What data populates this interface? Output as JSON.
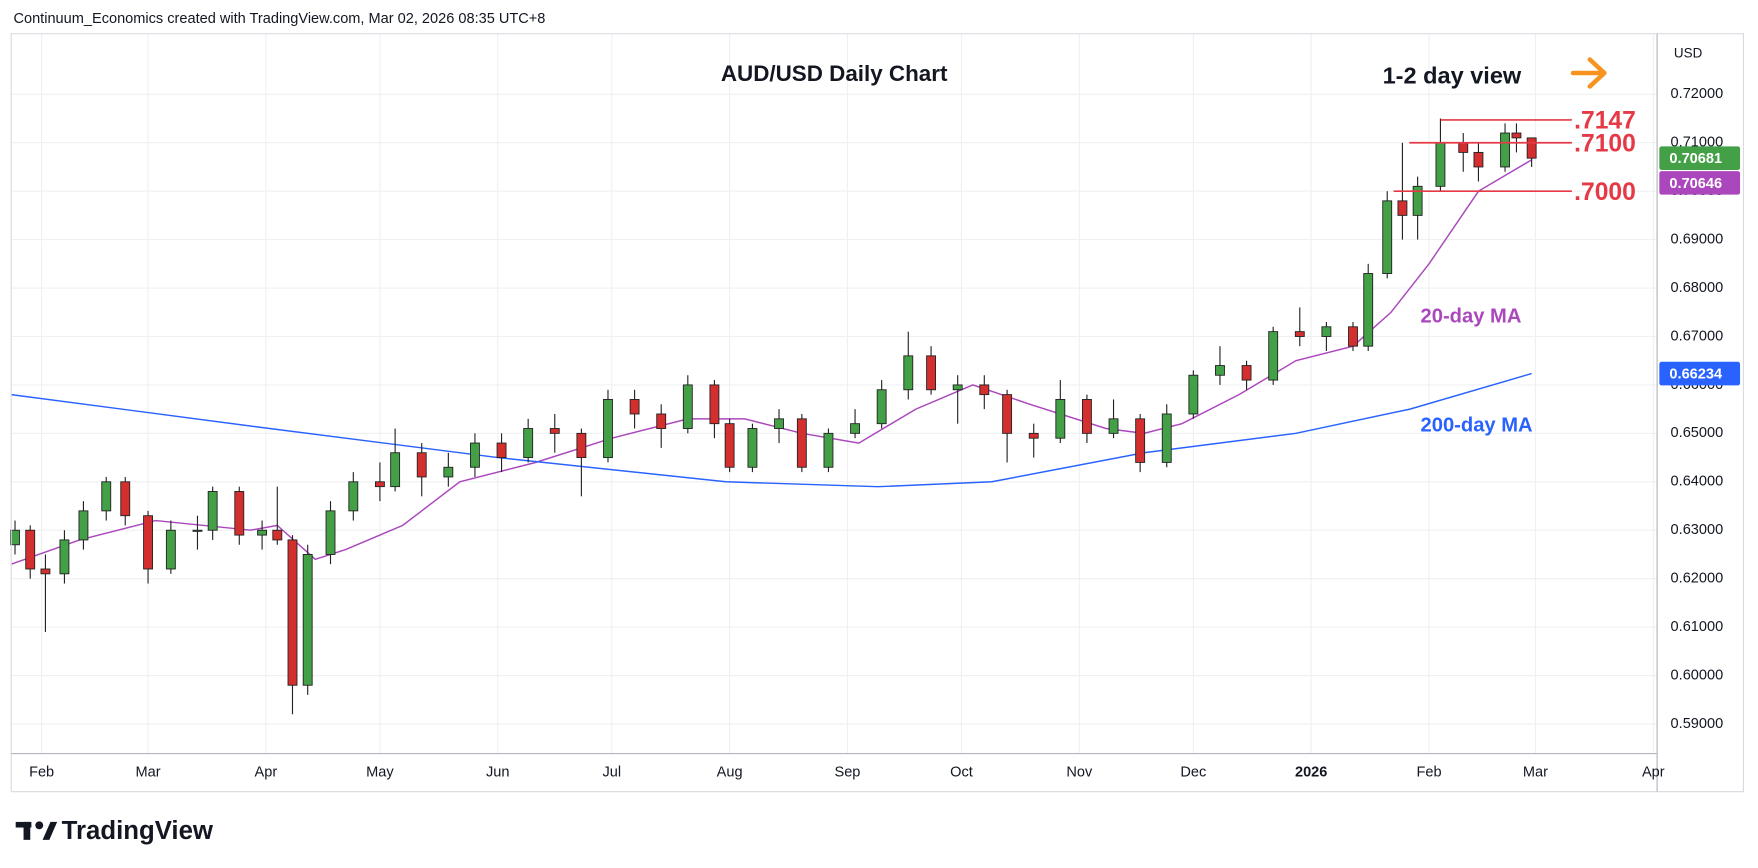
{
  "header": {
    "attribution": "Continuum_Economics created with TradingView.com, Mar 02, 2026 08:35 UTC+8"
  },
  "chart_data": {
    "type": "candlestick",
    "title": "AUD/USD Daily Chart",
    "annotation": "1-2 day view",
    "currency": "USD",
    "x": [
      -7,
      -3,
      1,
      6,
      11,
      17,
      22,
      28,
      34,
      41,
      45,
      52,
      58,
      62,
      66,
      70,
      76,
      82,
      89,
      93,
      100,
      107,
      114,
      121,
      128,
      135,
      142,
      149,
      156,
      163,
      170,
      177,
      181,
      187,
      194,
      200,
      207,
      214,
      221,
      228,
      234,
      241,
      248,
      254,
      261,
      268,
      275,
      282,
      289,
      296,
      303,
      310,
      317,
      324,
      331,
      338,
      345,
      349,
      354,
      358,
      362,
      368,
      374,
      378,
      385,
      388,
      392
    ],
    "open": [
      0.627,
      0.63,
      0.622,
      0.621,
      0.628,
      0.634,
      0.64,
      0.633,
      0.622,
      0.63,
      0.63,
      0.638,
      0.629,
      0.63,
      0.628,
      0.598,
      0.625,
      0.634,
      0.64,
      0.639,
      0.646,
      0.641,
      0.643,
      0.648,
      0.645,
      0.651,
      0.65,
      0.645,
      0.657,
      0.654,
      0.651,
      0.66,
      0.652,
      0.643,
      0.651,
      0.653,
      0.643,
      0.65,
      0.652,
      0.659,
      0.666,
      0.659,
      0.66,
      0.658,
      0.65,
      0.649,
      0.657,
      0.65,
      0.653,
      0.644,
      0.654,
      0.662,
      0.664,
      0.661,
      0.671,
      0.67,
      0.672,
      0.668,
      0.683,
      0.698,
      0.695,
      0.701,
      0.71,
      0.708,
      0.705,
      0.712,
      0.711
    ],
    "high": [
      0.632,
      0.631,
      0.625,
      0.63,
      0.636,
      0.641,
      0.641,
      0.634,
      0.632,
      0.633,
      0.639,
      0.639,
      0.632,
      0.639,
      0.629,
      0.627,
      0.636,
      0.642,
      0.644,
      0.651,
      0.648,
      0.646,
      0.65,
      0.65,
      0.653,
      0.654,
      0.651,
      0.659,
      0.659,
      0.656,
      0.662,
      0.661,
      0.653,
      0.652,
      0.655,
      0.654,
      0.651,
      0.655,
      0.661,
      0.671,
      0.668,
      0.662,
      0.662,
      0.659,
      0.652,
      0.661,
      0.658,
      0.657,
      0.654,
      0.656,
      0.663,
      0.668,
      0.665,
      0.672,
      0.676,
      0.673,
      0.673,
      0.685,
      0.7,
      0.71,
      0.703,
      0.715,
      0.712,
      0.71,
      0.714,
      0.714,
      0.711
    ],
    "low": [
      0.625,
      0.62,
      0.609,
      0.619,
      0.626,
      0.632,
      0.631,
      0.619,
      0.621,
      0.626,
      0.628,
      0.627,
      0.626,
      0.627,
      0.592,
      0.596,
      0.623,
      0.632,
      0.636,
      0.638,
      0.637,
      0.639,
      0.641,
      0.642,
      0.644,
      0.646,
      0.637,
      0.644,
      0.651,
      0.647,
      0.65,
      0.649,
      0.642,
      0.642,
      0.648,
      0.642,
      0.642,
      0.649,
      0.651,
      0.657,
      0.658,
      0.652,
      0.655,
      0.644,
      0.645,
      0.648,
      0.648,
      0.649,
      0.642,
      0.643,
      0.653,
      0.66,
      0.659,
      0.66,
      0.668,
      0.667,
      0.667,
      0.667,
      0.682,
      0.69,
      0.69,
      0.7,
      0.704,
      0.702,
      0.704,
      0.708,
      0.705
    ],
    "close": [
      0.63,
      0.622,
      0.621,
      0.628,
      0.634,
      0.64,
      0.633,
      0.622,
      0.63,
      0.63,
      0.638,
      0.629,
      0.63,
      0.628,
      0.598,
      0.625,
      0.634,
      0.64,
      0.639,
      0.646,
      0.641,
      0.643,
      0.648,
      0.645,
      0.651,
      0.65,
      0.645,
      0.657,
      0.654,
      0.651,
      0.66,
      0.652,
      0.643,
      0.651,
      0.653,
      0.643,
      0.65,
      0.652,
      0.659,
      0.666,
      0.659,
      0.66,
      0.658,
      0.65,
      0.649,
      0.657,
      0.65,
      0.653,
      0.644,
      0.654,
      0.662,
      0.664,
      0.661,
      0.671,
      0.67,
      0.672,
      0.668,
      0.683,
      0.698,
      0.695,
      0.701,
      0.71,
      0.708,
      0.705,
      0.712,
      0.711,
      0.70681
    ],
    "last_value_label": "0.70681",
    "last_color": "#43a047",
    "up_color": "#43a047",
    "down_color": "#d32f2f",
    "series": [
      {
        "name": "20-day MA",
        "color": "#ab47bc",
        "x": [
          -8,
          10,
          30,
          55,
          62,
          72,
          80,
          95,
          110,
          130,
          150,
          170,
          185,
          200,
          215,
          230,
          245,
          260,
          280,
          290,
          300,
          315,
          330,
          345,
          355,
          365,
          378,
          392
        ],
        "values": [
          0.623,
          0.628,
          0.632,
          0.63,
          0.631,
          0.624,
          0.626,
          0.631,
          0.64,
          0.644,
          0.649,
          0.653,
          0.653,
          0.65,
          0.648,
          0.655,
          0.66,
          0.656,
          0.651,
          0.65,
          0.652,
          0.658,
          0.665,
          0.668,
          0.675,
          0.685,
          0.7,
          0.70646
        ],
        "last_value_label": "0.70646"
      },
      {
        "name": "200-day MA",
        "color": "#2962ff",
        "x": [
          -8,
          60,
          120,
          180,
          220,
          250,
          290,
          330,
          360,
          392
        ],
        "values": [
          0.658,
          0.651,
          0.645,
          0.64,
          0.639,
          0.64,
          0.646,
          0.65,
          0.655,
          0.66234
        ],
        "last_value_label": "0.66234"
      }
    ],
    "levels": [
      {
        "value": 0.7147,
        "label": ".7147"
      },
      {
        "value": 0.71,
        "label": ".7100"
      },
      {
        "value": 0.7,
        "label": ".7000"
      }
    ],
    "level_color": "#e53946",
    "xlim": [
      -8,
      425
    ],
    "xticks": [
      {
        "value": 0,
        "label": "Feb"
      },
      {
        "value": 28,
        "label": "Mar"
      },
      {
        "value": 59,
        "label": "Apr"
      },
      {
        "value": 89,
        "label": "May"
      },
      {
        "value": 120,
        "label": "Jun"
      },
      {
        "value": 150,
        "label": "Jul"
      },
      {
        "value": 181,
        "label": "Aug"
      },
      {
        "value": 212,
        "label": "Sep"
      },
      {
        "value": 242,
        "label": "Oct"
      },
      {
        "value": 273,
        "label": "Nov"
      },
      {
        "value": 303,
        "label": "Dec"
      },
      {
        "value": 334,
        "label": "2026"
      },
      {
        "value": 365,
        "label": "Feb"
      },
      {
        "value": 393,
        "label": "Mar"
      },
      {
        "value": 424,
        "label": "Apr"
      }
    ],
    "ylim": [
      0.5839,
      0.7325
    ],
    "yticks": [
      {
        "value": 0.59,
        "label": "0.59000"
      },
      {
        "value": 0.6,
        "label": "0.60000"
      },
      {
        "value": 0.61,
        "label": "0.61000"
      },
      {
        "value": 0.62,
        "label": "0.62000"
      },
      {
        "value": 0.63,
        "label": "0.63000"
      },
      {
        "value": 0.64,
        "label": "0.64000"
      },
      {
        "value": 0.65,
        "label": "0.65000"
      },
      {
        "value": 0.66,
        "label": "0.66000"
      },
      {
        "value": 0.67,
        "label": "0.67000"
      },
      {
        "value": 0.68,
        "label": "0.68000"
      },
      {
        "value": 0.69,
        "label": "0.69000"
      },
      {
        "value": 0.7,
        "label": "0.70000"
      },
      {
        "value": 0.71,
        "label": "0.71000"
      },
      {
        "value": 0.72,
        "label": "0.72000"
      }
    ],
    "grid": true
  },
  "footer": {
    "logo": "TradingView"
  }
}
